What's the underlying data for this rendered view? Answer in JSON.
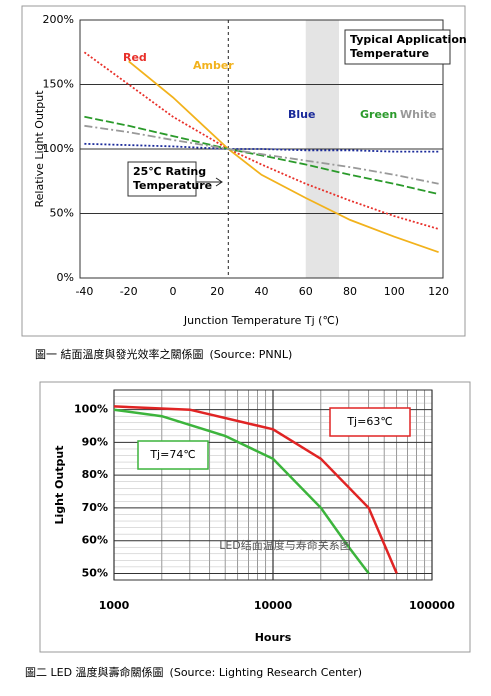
{
  "chart_data": [
    {
      "type": "line",
      "x_label": "Junction Temperature Tj (℃)",
      "y_label": "Relative Light Output",
      "caption": "圖一 結面溫度與發光效率之關係圖",
      "source": "(Source: PNNL)",
      "x": [
        -40,
        -20,
        0,
        25,
        40,
        60,
        80,
        100,
        120
      ],
      "series": [
        {
          "name": "Red",
          "color": "#e8302a",
          "dash": "2,2",
          "values": [
            175,
            150,
            125,
            100,
            88,
            73,
            60,
            48,
            38
          ]
        },
        {
          "name": "Amber",
          "color": "#f2b21c",
          "dash": "",
          "values": [
            null,
            168,
            140,
            100,
            80,
            62,
            45,
            32,
            20
          ]
        },
        {
          "name": "Blue",
          "color": "#1a2a9a",
          "dash": "2,2",
          "values": [
            104,
            103,
            102,
            100,
            100,
            99,
            99,
            98,
            98
          ]
        },
        {
          "name": "Green",
          "color": "#2a9a2a",
          "dash": "8,3",
          "values": [
            125,
            118,
            110,
            100,
            95,
            88,
            80,
            73,
            65
          ]
        },
        {
          "name": "White",
          "color": "#999999",
          "dash": "8,3,2,3",
          "values": [
            118,
            113,
            107,
            100,
            96,
            91,
            86,
            80,
            73
          ]
        }
      ],
      "xlim": [
        -42,
        122
      ],
      "ylim": [
        0,
        200
      ],
      "xticks": [
        -40,
        -20,
        0,
        20,
        40,
        60,
        80,
        100,
        120
      ],
      "yticks": [
        {
          "value": 0,
          "label": "0%"
        },
        {
          "value": 50,
          "label": "50%"
        },
        {
          "value": 100,
          "label": "100%"
        },
        {
          "value": 150,
          "label": "150%"
        },
        {
          "value": 200,
          "label": "200%"
        }
      ],
      "grid": true,
      "shade": [
        60,
        75
      ],
      "vline": 25,
      "annotations": [
        [
          "Typical Application",
          "Temperature"
        ],
        [
          "25℃  Rating",
          "Temperature"
        ]
      ]
    },
    {
      "type": "line",
      "log_x": true,
      "x_label": "Hours",
      "y_label": "Light Output",
      "caption": "圖二 LED 溫度與壽命關係圖",
      "source": "(Source: Lighting Research Center)",
      "series": [
        {
          "name": "Tj=74℃",
          "color": "#3cb43c",
          "x": [
            1000,
            2000,
            5000,
            10000,
            20000,
            30000,
            40000
          ],
          "values": [
            100,
            98,
            92,
            85,
            70,
            58,
            50
          ]
        },
        {
          "name": "Tj=63℃",
          "color": "#e02424",
          "x": [
            1000,
            3000,
            10000,
            20000,
            40000,
            60000
          ],
          "values": [
            101,
            100,
            94,
            85,
            70,
            50
          ]
        }
      ],
      "xlim": [
        1000,
        100000
      ],
      "ylim": [
        48,
        106
      ],
      "xticks": [
        1000,
        10000,
        100000
      ],
      "yticks": [
        {
          "value": 50,
          "label": "50%"
        },
        {
          "value": 60,
          "label": "60%"
        },
        {
          "value": 70,
          "label": "70%"
        },
        {
          "value": 80,
          "label": "80%"
        },
        {
          "value": 90,
          "label": "90%"
        },
        {
          "value": 100,
          "label": "100%"
        }
      ],
      "grid": true,
      "watermark": "LED结面温度与寿命关系图"
    }
  ]
}
